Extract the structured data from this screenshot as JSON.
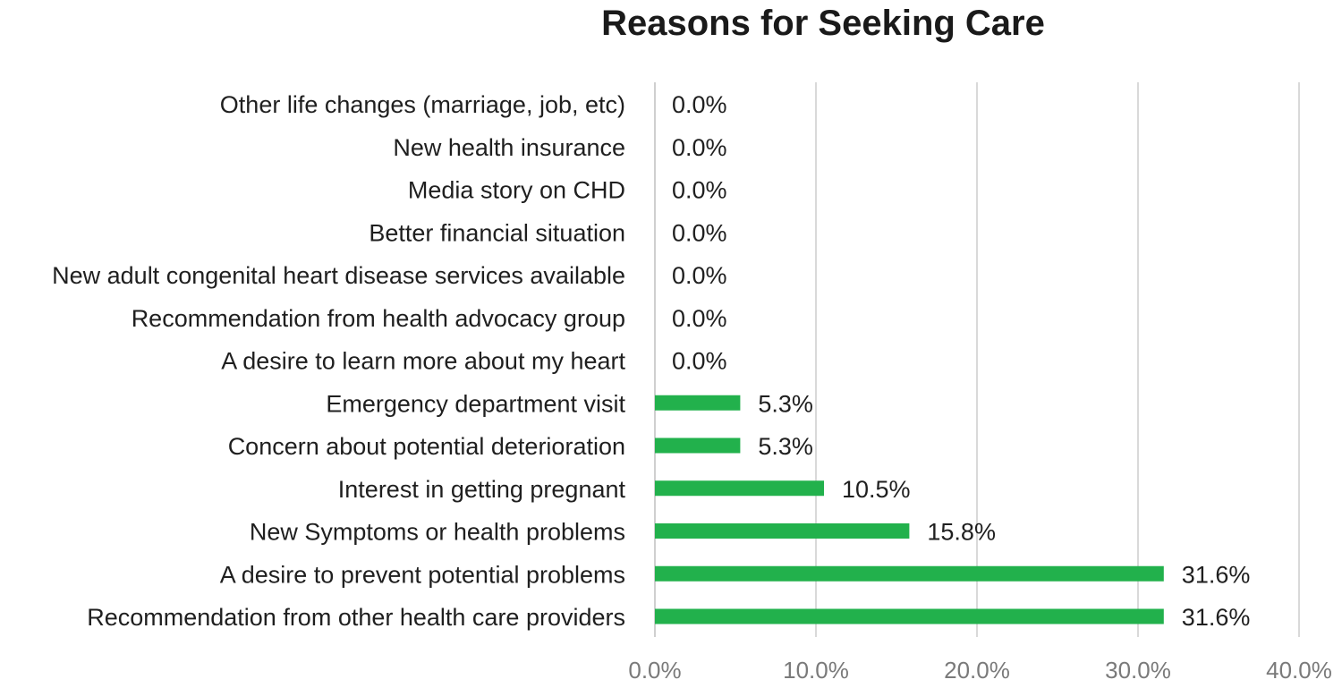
{
  "chart_data": {
    "type": "bar",
    "orientation": "horizontal",
    "title": "Reasons for Seeking Care",
    "xlabel": "",
    "ylabel": "",
    "categories": [
      "Other life changes (marriage, job, etc)",
      "New health insurance",
      "Media story on CHD",
      "Better financial situation",
      "New adult congenital heart disease services available",
      "Recommendation from health advocacy group",
      "A desire to learn more about my heart",
      "Emergency department visit",
      "Concern about potential deterioration",
      "Interest in getting pregnant",
      "New Symptoms or health problems",
      "A desire to prevent potential problems",
      "Recommendation from other health care providers"
    ],
    "values": [
      0.0,
      0.0,
      0.0,
      0.0,
      0.0,
      0.0,
      0.0,
      5.3,
      5.3,
      10.5,
      15.8,
      31.6,
      31.6
    ],
    "value_labels": [
      "0.0%",
      "0.0%",
      "0.0%",
      "0.0%",
      "0.0%",
      "0.0%",
      "0.0%",
      "5.3%",
      "5.3%",
      "10.5%",
      "15.8%",
      "31.6%",
      "31.6%"
    ],
    "xlim": [
      0,
      40
    ],
    "xticks": [
      0,
      10,
      20,
      30,
      40
    ],
    "xtick_labels": [
      "0.0%",
      "10.0%",
      "20.0%",
      "30.0%",
      "40.0%"
    ],
    "grid": true,
    "legend": "none",
    "bar_color": "#22b14c"
  }
}
